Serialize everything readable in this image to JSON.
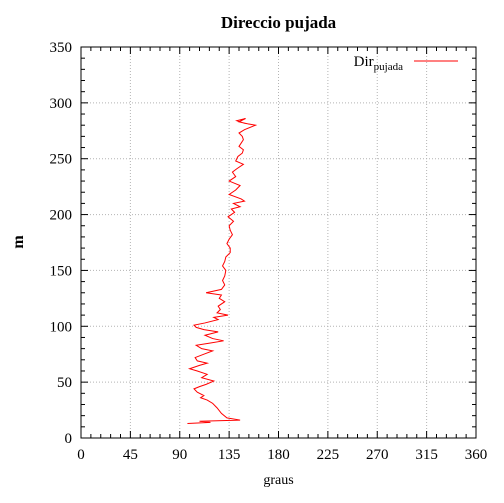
{
  "chart_data": {
    "type": "line",
    "title": "Direccio pujada",
    "xlabel": "graus",
    "ylabel": "m",
    "xlim": [
      0,
      360
    ],
    "ylim": [
      0,
      350
    ],
    "xticks": [
      0,
      45,
      90,
      135,
      180,
      225,
      270,
      315,
      360
    ],
    "yticks": [
      0,
      50,
      100,
      150,
      200,
      250,
      300,
      350
    ],
    "grid": true,
    "legend_position": "top-right",
    "series": [
      {
        "name": "Dir",
        "name_subscript": "pujada",
        "color": "#ff0000",
        "points": [
          [
            97,
            13
          ],
          [
            118,
            14
          ],
          [
            108,
            15
          ],
          [
            145,
            16
          ],
          [
            133,
            18
          ],
          [
            128,
            22
          ],
          [
            124,
            27
          ],
          [
            120,
            31
          ],
          [
            115,
            34
          ],
          [
            109,
            36
          ],
          [
            112,
            38
          ],
          [
            106,
            41
          ],
          [
            103,
            44
          ],
          [
            108,
            46
          ],
          [
            114,
            48
          ],
          [
            121,
            51
          ],
          [
            110,
            54
          ],
          [
            115,
            57
          ],
          [
            106,
            60
          ],
          [
            99,
            62
          ],
          [
            108,
            65
          ],
          [
            115,
            67
          ],
          [
            106,
            69
          ],
          [
            104,
            72
          ],
          [
            112,
            75
          ],
          [
            120,
            78
          ],
          [
            110,
            80
          ],
          [
            105,
            83
          ],
          [
            118,
            85
          ],
          [
            130,
            87
          ],
          [
            120,
            89
          ],
          [
            113,
            92
          ],
          [
            125,
            95
          ],
          [
            112,
            97
          ],
          [
            105,
            99
          ],
          [
            103,
            101
          ],
          [
            113,
            103
          ],
          [
            125,
            106
          ],
          [
            121,
            108
          ],
          [
            134,
            110
          ],
          [
            124,
            112
          ],
          [
            127,
            115
          ],
          [
            125,
            118
          ],
          [
            131,
            122
          ],
          [
            126,
            125
          ],
          [
            128,
            128
          ],
          [
            114,
            130
          ],
          [
            128,
            133
          ],
          [
            131,
            137
          ],
          [
            129,
            141
          ],
          [
            131,
            145
          ],
          [
            132,
            150
          ],
          [
            129,
            154
          ],
          [
            131,
            158
          ],
          [
            132,
            162
          ],
          [
            136,
            166
          ],
          [
            136,
            170
          ],
          [
            133,
            174
          ],
          [
            135,
            178
          ],
          [
            138,
            182
          ],
          [
            136,
            186
          ],
          [
            135,
            190
          ],
          [
            139,
            194
          ],
          [
            134,
            198
          ],
          [
            140,
            202
          ],
          [
            137,
            205
          ],
          [
            145,
            207
          ],
          [
            139,
            210
          ],
          [
            149,
            212
          ],
          [
            146,
            214
          ],
          [
            135,
            218
          ],
          [
            141,
            222
          ],
          [
            145,
            226
          ],
          [
            135,
            230
          ],
          [
            141,
            234
          ],
          [
            138,
            238
          ],
          [
            142,
            241
          ],
          [
            148,
            245
          ],
          [
            141,
            248
          ],
          [
            143,
            252
          ],
          [
            147,
            255
          ],
          [
            148,
            258
          ],
          [
            144,
            261
          ],
          [
            146,
            264
          ],
          [
            148,
            267
          ],
          [
            147,
            270
          ],
          [
            144,
            273
          ],
          [
            149,
            276
          ],
          [
            159,
            280
          ],
          [
            148,
            282
          ],
          [
            142,
            284
          ],
          [
            150,
            286
          ],
          [
            144,
            283
          ],
          [
            153,
            281
          ]
        ]
      }
    ]
  }
}
